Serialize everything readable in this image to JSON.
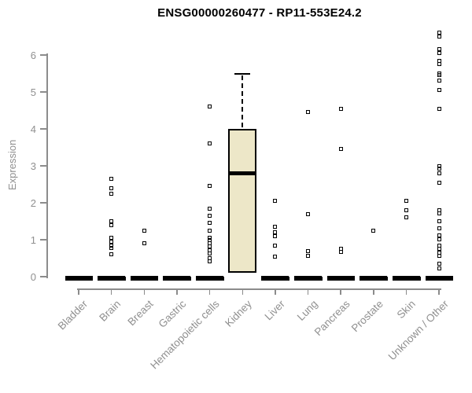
{
  "colors": {
    "box_fill": "#EDE7C8",
    "box_border": "#000000",
    "axis": "#8C8C8C",
    "text": "#909090",
    "title": "#000000"
  },
  "chart_data": {
    "type": "boxplot",
    "title": "ENSG00000260477 - RP11-553E24.2",
    "ylabel": "Expression",
    "ylim": [
      -0.15,
      6.7
    ],
    "yticks": [
      0,
      1,
      2,
      3,
      4,
      5,
      6
    ],
    "grid": false,
    "legend": "none",
    "categories": [
      "Bladder",
      "Brain",
      "Breast",
      "Gastric",
      "Hematopoietic cells",
      "Kidney",
      "Liver",
      "Lung",
      "Pancreas",
      "Prostate",
      "Skin",
      "Unknown / Other"
    ],
    "series": [
      {
        "category": "Bladder",
        "collapsed": true,
        "box": {
          "q1": 0,
          "median": 0,
          "q3": 0,
          "whisker_low": 0,
          "whisker_high": 0
        },
        "outliers": []
      },
      {
        "category": "Brain",
        "collapsed": true,
        "box": {
          "q1": 0,
          "median": 0,
          "q3": 0,
          "whisker_low": 0,
          "whisker_high": 0
        },
        "outliers": [
          2.65,
          2.4,
          2.25,
          1.5,
          1.4,
          1.05,
          0.95,
          0.85,
          0.78,
          0.6
        ]
      },
      {
        "category": "Breast",
        "collapsed": true,
        "box": {
          "q1": 0,
          "median": 0,
          "q3": 0,
          "whisker_low": 0,
          "whisker_high": 0
        },
        "outliers": [
          1.25,
          0.9
        ]
      },
      {
        "category": "Gastric",
        "collapsed": true,
        "box": {
          "q1": 0,
          "median": 0,
          "q3": 0,
          "whisker_low": 0,
          "whisker_high": 0
        },
        "outliers": []
      },
      {
        "category": "Hematopoietic cells",
        "collapsed": true,
        "box": {
          "q1": 0,
          "median": 0,
          "q3": 0,
          "whisker_low": 0,
          "whisker_high": 0
        },
        "outliers": [
          4.6,
          3.6,
          2.45,
          1.85,
          1.65,
          1.45,
          1.25,
          1.05,
          0.98,
          0.9,
          0.82,
          0.72,
          0.62,
          0.5,
          0.42
        ]
      },
      {
        "category": "Kidney",
        "collapsed": false,
        "box": {
          "q1": 0.1,
          "median": 2.8,
          "q3": 4.0,
          "whisker_low": 0.1,
          "whisker_high": 5.5
        },
        "outliers": []
      },
      {
        "category": "Liver",
        "collapsed": true,
        "box": {
          "q1": 0,
          "median": 0,
          "q3": 0,
          "whisker_low": 0,
          "whisker_high": 0
        },
        "outliers": [
          2.05,
          1.35,
          1.2,
          1.1,
          0.85,
          0.55
        ]
      },
      {
        "category": "Lung",
        "collapsed": true,
        "box": {
          "q1": 0,
          "median": 0,
          "q3": 0,
          "whisker_low": 0,
          "whisker_high": 0
        },
        "outliers": [
          4.45,
          1.7,
          0.7,
          0.57
        ]
      },
      {
        "category": "Pancreas",
        "collapsed": true,
        "box": {
          "q1": 0,
          "median": 0,
          "q3": 0,
          "whisker_low": 0,
          "whisker_high": 0
        },
        "outliers": [
          4.55,
          3.45,
          0.75,
          0.66
        ]
      },
      {
        "category": "Prostate",
        "collapsed": true,
        "box": {
          "q1": 0,
          "median": 0,
          "q3": 0,
          "whisker_low": 0,
          "whisker_high": 0
        },
        "outliers": [
          1.25
        ]
      },
      {
        "category": "Skin",
        "collapsed": true,
        "box": {
          "q1": 0,
          "median": 0,
          "q3": 0,
          "whisker_low": 0,
          "whisker_high": 0
        },
        "outliers": [
          2.05,
          1.8,
          1.6
        ]
      },
      {
        "category": "Unknown / Other",
        "collapsed": true,
        "box": {
          "q1": 0,
          "median": 0,
          "q3": 0,
          "whisker_low": 0,
          "whisker_high": 0
        },
        "outliers": [
          6.6,
          6.5,
          6.15,
          6.05,
          5.85,
          5.75,
          5.5,
          5.45,
          5.3,
          5.05,
          4.55,
          3.0,
          2.92,
          2.8,
          2.55,
          1.8,
          1.72,
          1.5,
          1.3,
          1.12,
          1.02,
          0.85,
          0.75,
          0.65,
          0.57,
          0.35,
          0.22
        ]
      }
    ]
  }
}
